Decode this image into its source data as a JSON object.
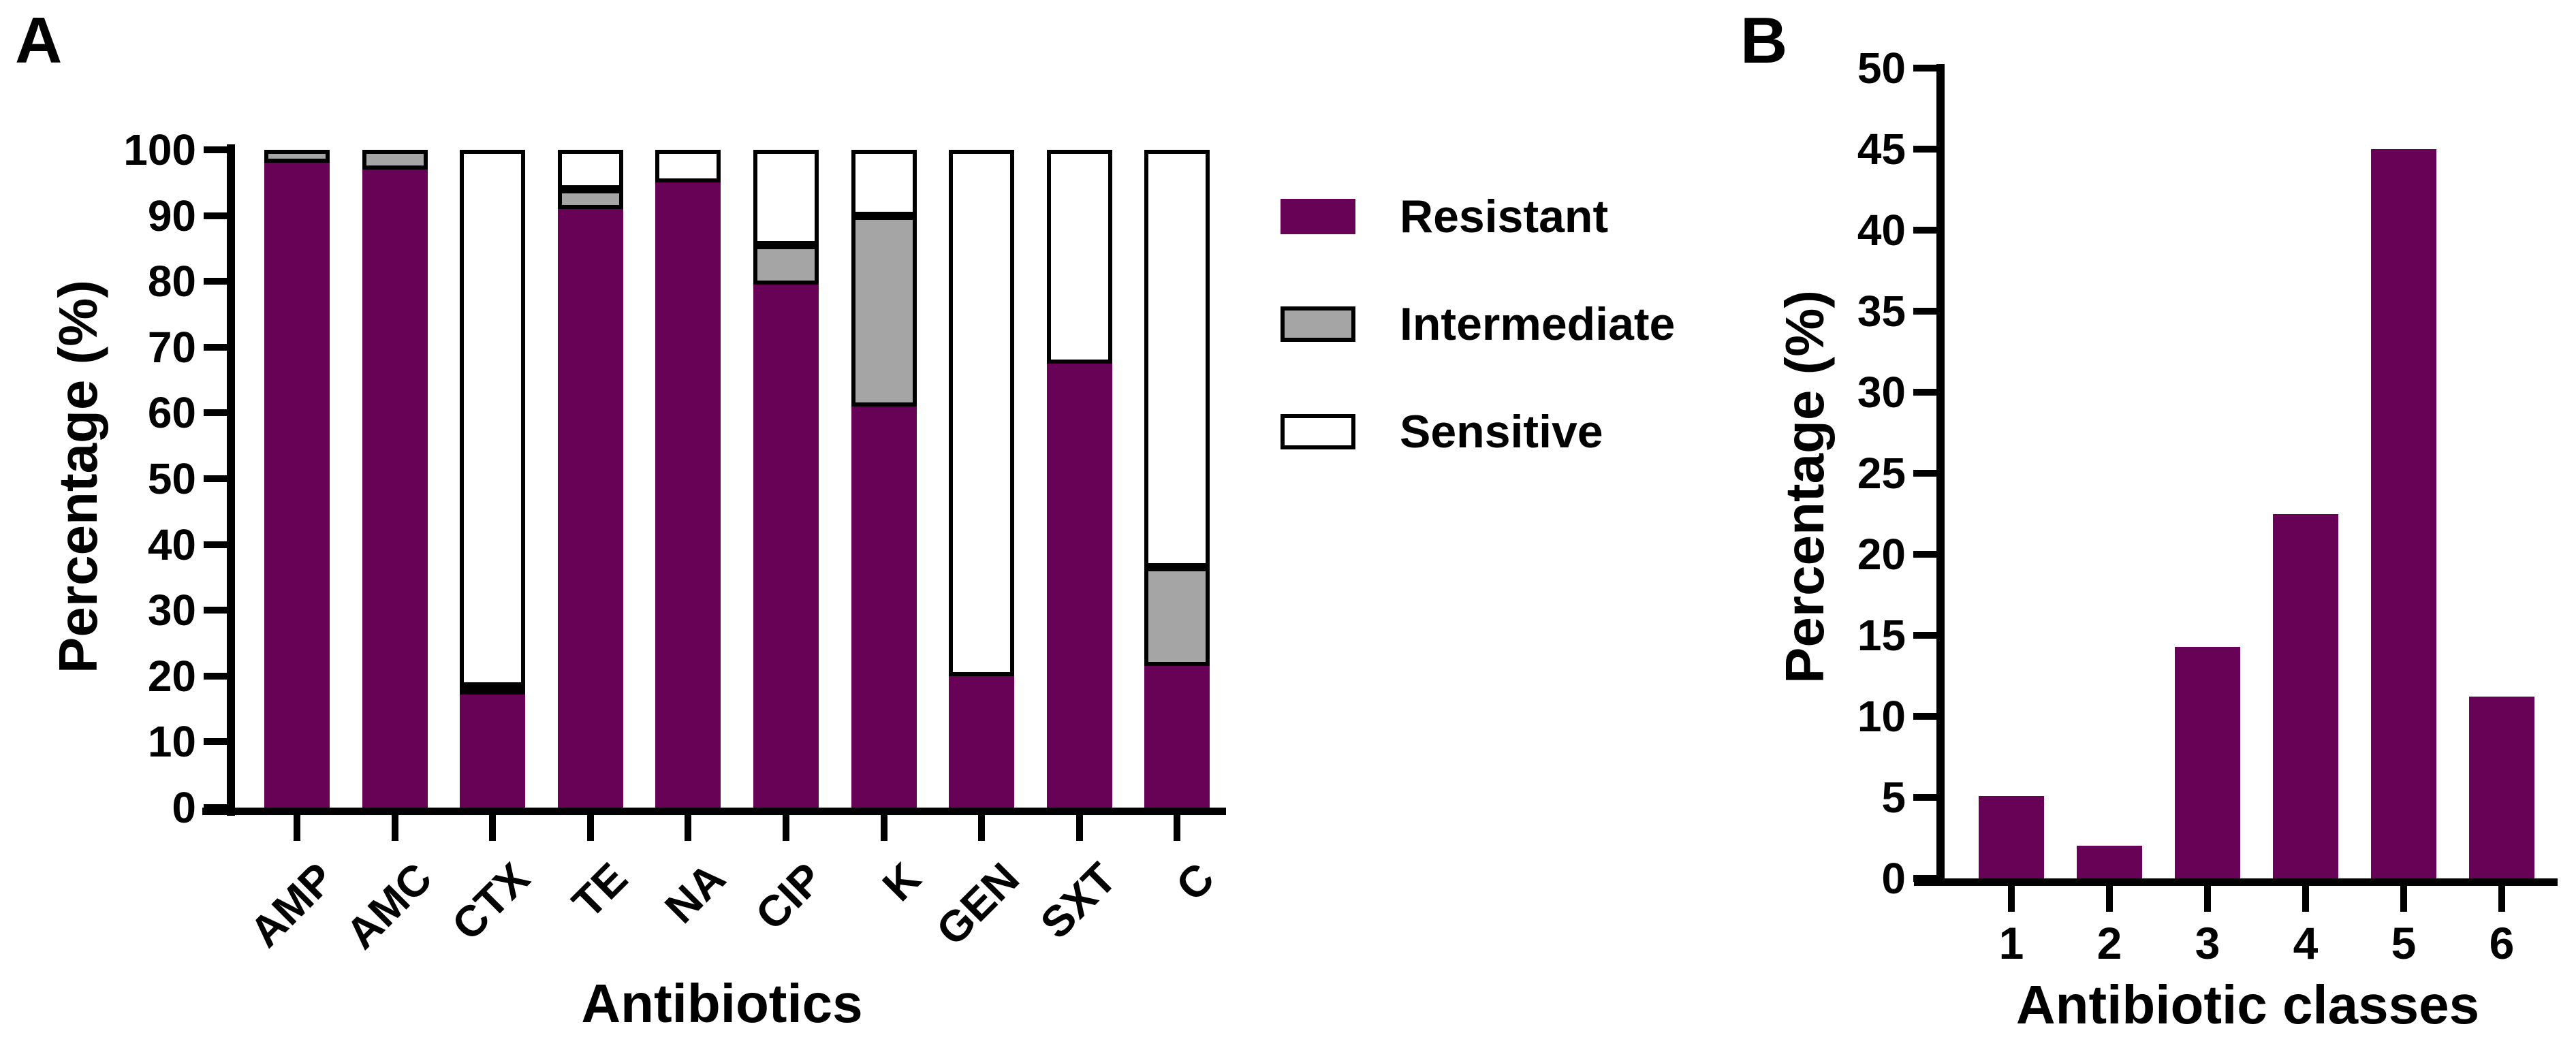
{
  "chart_data": [
    {
      "panel_label": "A",
      "type": "bar",
      "subtype": "stacked-percentage",
      "title": "",
      "xlabel": "Antibiotics",
      "ylabel": "Percentage (%)",
      "ylim": [
        0,
        100
      ],
      "ytick_step": 10,
      "yticks": [
        0,
        10,
        20,
        30,
        40,
        50,
        60,
        70,
        80,
        90,
        100
      ],
      "grid": false,
      "legend_position": "right",
      "categories": [
        "AMP",
        "AMC",
        "CTX",
        "TE",
        "NA",
        "CIP",
        "K",
        "GEN",
        "SXT",
        "C"
      ],
      "series": [
        {
          "name": "Resistant",
          "color": "#680256",
          "border_visible": false,
          "values": [
            98,
            97,
            17.7,
            91,
            95,
            79.5,
            61,
            20,
            67.5,
            21.5
          ]
        },
        {
          "name": "Intermediate",
          "color": "#a5a5a5",
          "border_visible": true,
          "values": [
            2,
            3,
            0.7,
            3,
            0,
            6,
            29,
            0,
            0,
            15
          ]
        },
        {
          "name": "Sensitive",
          "color": "#ffffff",
          "border_visible": true,
          "values": [
            0,
            0,
            81.6,
            6,
            5,
            14.5,
            10,
            80,
            32.5,
            63.5
          ]
        }
      ]
    },
    {
      "panel_label": "B",
      "type": "bar",
      "subtype": "simple",
      "title": "",
      "xlabel": "Antibiotic classes",
      "ylabel": "Percentage (%)",
      "ylim": [
        0,
        50
      ],
      "ytick_step": 5,
      "yticks": [
        0,
        5,
        10,
        15,
        20,
        25,
        30,
        35,
        40,
        45,
        50
      ],
      "grid": false,
      "bar_color": "#680256",
      "categories": [
        "1",
        "2",
        "3",
        "4",
        "5",
        "6"
      ],
      "values": [
        5.1,
        2,
        14.3,
        22.5,
        45,
        11.2
      ]
    }
  ],
  "colors": {
    "resistant": "#680256",
    "intermediate": "#a5a5a5",
    "sensitive": "#ffffff",
    "axis": "#000000",
    "background": "#ffffff"
  }
}
